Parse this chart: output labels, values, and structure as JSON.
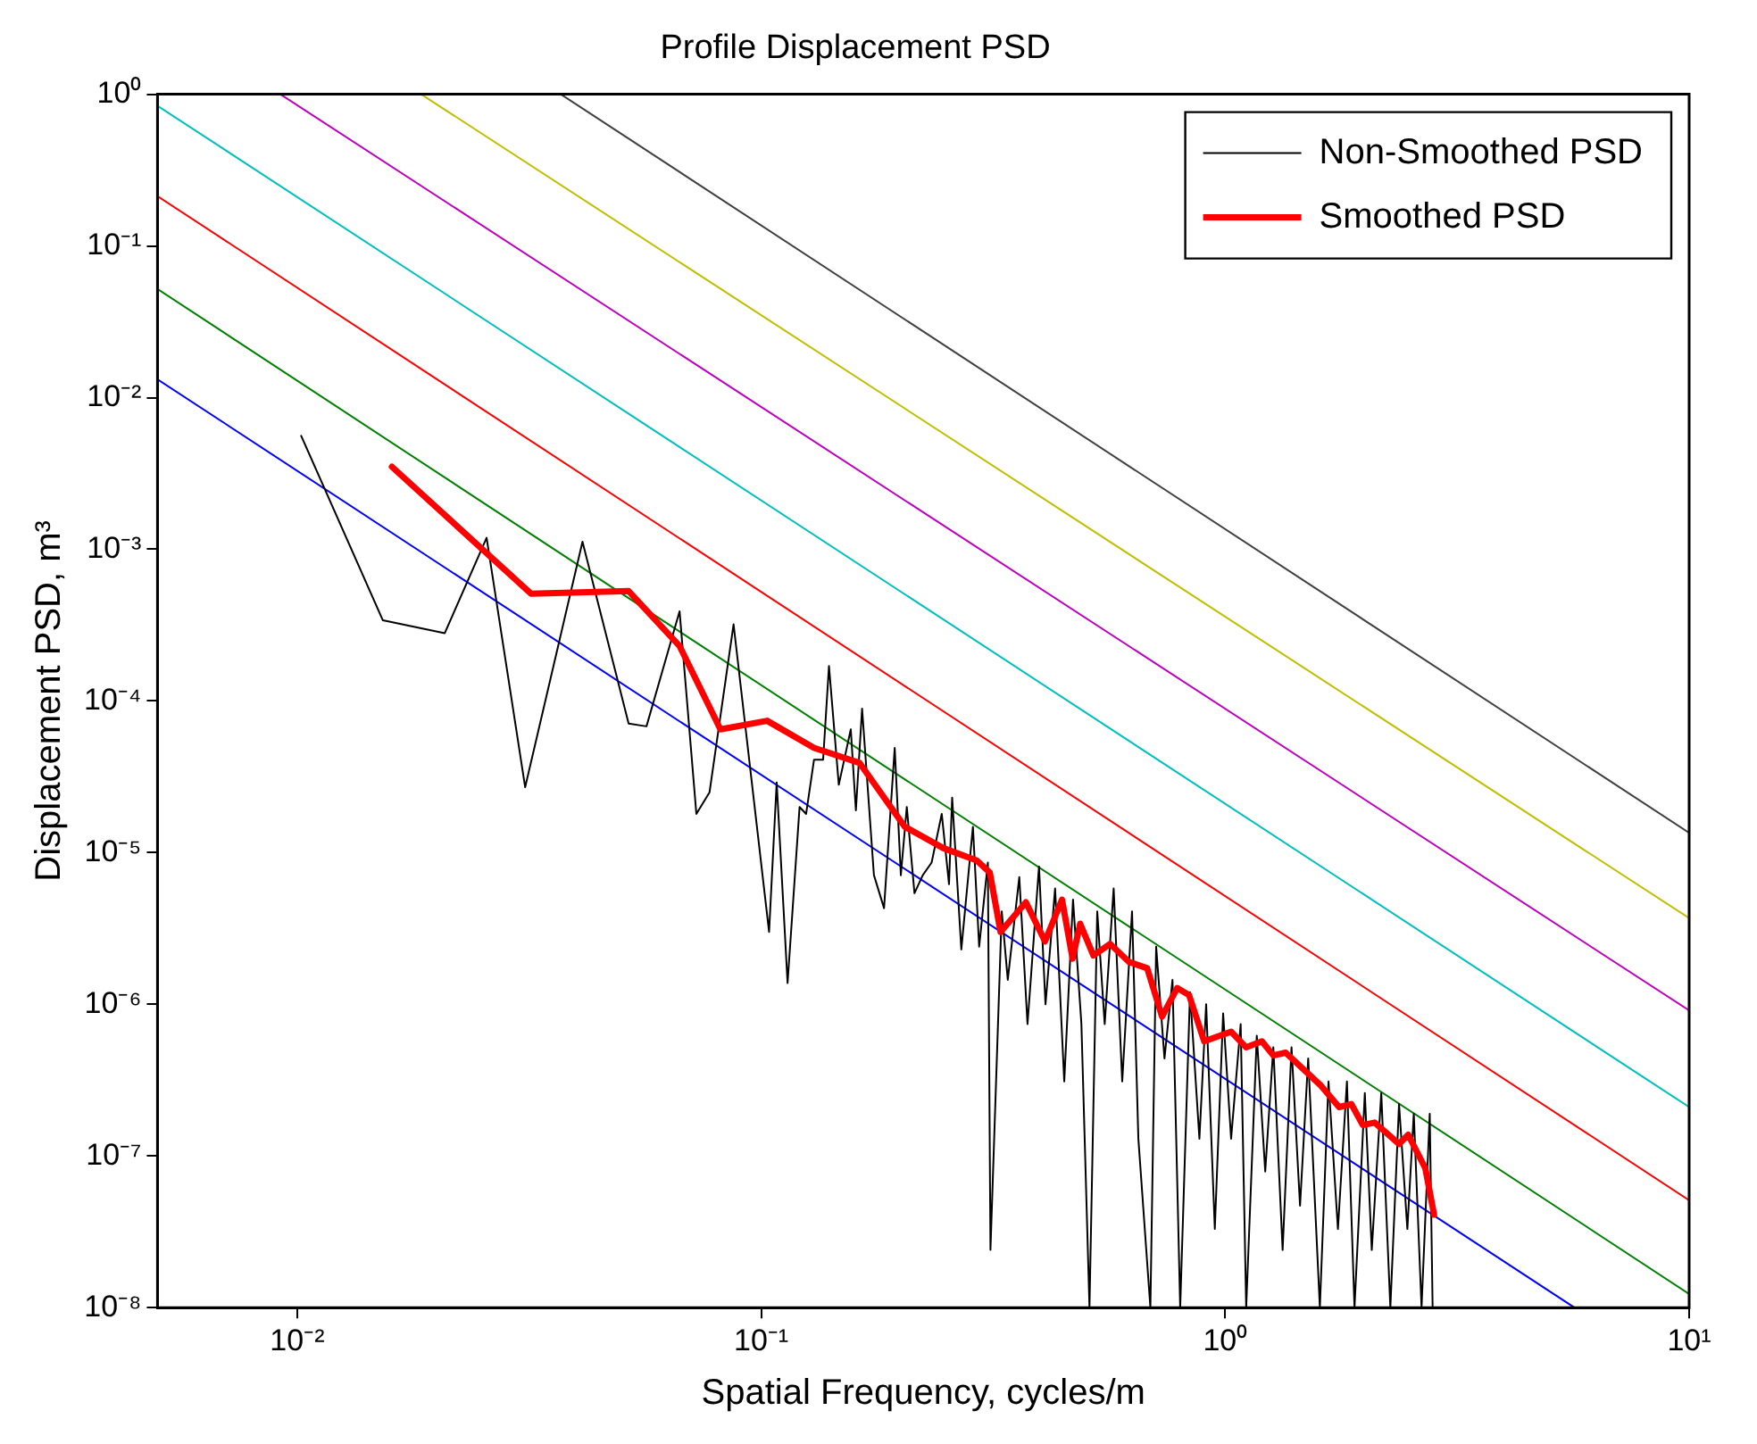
{
  "chart_data": {
    "type": "line",
    "title": "Profile Displacement PSD",
    "xlabel": "Spatial Frequency, cycles/m",
    "ylabel": "Displacement PSD, m³",
    "log": "xy",
    "grid": false,
    "legend": "top right",
    "marker": "none",
    "line_style": "solid",
    "xlim": [
      0.005,
      10
    ],
    "ylim": [
      1e-08,
      1
    ],
    "xticks": [
      {
        "value": 0.01,
        "label": "10⁻²"
      },
      {
        "value": 0.1,
        "label": "10⁻¹"
      },
      {
        "value": 1,
        "label": "10⁰"
      },
      {
        "value": 10,
        "label": "10¹"
      }
    ],
    "yticks": [
      {
        "value": 1e-08,
        "label": "10⁻⁸"
      },
      {
        "value": 1e-07,
        "label": "10⁻⁷"
      },
      {
        "value": 1e-06,
        "label": "10⁻⁶"
      },
      {
        "value": 1e-05,
        "label": "10⁻⁵"
      },
      {
        "value": 0.0001,
        "label": "10⁻⁴"
      },
      {
        "value": 0.001,
        "label": "10⁻³"
      },
      {
        "value": 0.01,
        "label": "10⁻²"
      },
      {
        "value": 0.1,
        "label": "10⁻¹"
      },
      {
        "value": 1,
        "label": "10⁰"
      }
    ],
    "series": [
      {
        "color": "#0000ff",
        "x": [
          0.005,
          5.66
        ],
        "values": [
          0.0132,
          1e-08
        ]
      },
      {
        "color": "#008000",
        "x": [
          0.005,
          10
        ],
        "values": [
          0.052,
          1.23e-08
        ]
      },
      {
        "color": "#ff0000",
        "x": [
          0.005,
          10
        ],
        "values": [
          0.213,
          5.1e-08
        ]
      },
      {
        "color": "#00bfbf",
        "x": [
          0.005,
          10
        ],
        "values": [
          0.84,
          2.1e-07
        ]
      },
      {
        "color": "#bf00bf",
        "x": [
          0.0092,
          10
        ],
        "values": [
          1,
          9.1e-07
        ]
      },
      {
        "color": "#bfbf00",
        "x": [
          0.0185,
          10
        ],
        "values": [
          1,
          3.7e-06
        ]
      },
      {
        "color": "#404040",
        "x": [
          0.037,
          10
        ],
        "values": [
          1,
          1.35e-05
        ]
      },
      {
        "name": "Non-Smoothed PSD",
        "color": "#000000",
        "x": [
          0.0102,
          0.0153,
          0.0208,
          0.0256,
          0.031,
          0.0412,
          0.0518,
          0.0566,
          0.0667,
          0.0725,
          0.0774,
          0.0872,
          0.104,
          0.108,
          0.114,
          0.121,
          0.125,
          0.13,
          0.136,
          0.14,
          0.147,
          0.156,
          0.16,
          0.165,
          0.175,
          0.184,
          0.194,
          0.2,
          0.206,
          0.214,
          0.223,
          0.233,
          0.245,
          0.254,
          0.258,
          0.27,
          0.286,
          0.295,
          0.308,
          0.312,
          0.33,
          0.34,
          0.36,
          0.375,
          0.397,
          0.41,
          0.43,
          0.45,
          0.47,
          0.49,
          0.51,
          0.53,
          0.55,
          0.575,
          0.6,
          0.63,
          0.65,
          0.69,
          0.71,
          0.74,
          0.77,
          0.8,
          0.84,
          0.88,
          0.91,
          0.95,
          0.99,
          1.03,
          1.08,
          1.11,
          1.17,
          1.22,
          1.27,
          1.33,
          1.39,
          1.45,
          1.51,
          1.6,
          1.67,
          1.75,
          1.83,
          1.9,
          2.0,
          2.07,
          2.17,
          2.27,
          2.37,
          2.47,
          2.55,
          2.65,
          2.76,
          2.8
        ],
        "values": [
          0.0056,
          0.00034,
          0.00028,
          0.00119,
          2.7e-05,
          0.00112,
          7.1e-05,
          6.8e-05,
          0.00039,
          1.8e-05,
          2.5e-05,
          0.00032,
          3e-06,
          2.9e-05,
          1.38e-06,
          2e-05,
          1.8e-05,
          4.1e-05,
          4.1e-05,
          0.00017,
          2.8e-05,
          6.5e-05,
          1.9e-05,
          8.9e-05,
          7.1e-06,
          4.3e-06,
          4.9e-05,
          7.1e-06,
          2e-05,
          5.4e-06,
          7.1e-06,
          8.6e-06,
          1.8e-05,
          6.2e-06,
          2.3e-05,
          2.3e-06,
          1.48e-05,
          2.4e-06,
          8.6e-06,
          2.4e-08,
          4.1e-06,
          1.45e-06,
          6.9e-06,
          7.4e-07,
          8.1e-06,
          1e-06,
          5.8e-06,
          3.1e-07,
          4.9e-06,
          7.4e-07,
          1e-08,
          4.1e-06,
          7.4e-07,
          5.8e-06,
          3.1e-07,
          4.1e-06,
          1.3e-07,
          1e-08,
          2.4e-06,
          4.4e-07,
          1.45e-06,
          1e-08,
          1.2e-06,
          1.3e-07,
          1e-06,
          3.3e-08,
          8.7e-07,
          1.3e-07,
          7.4e-07,
          1e-08,
          6.2e-07,
          7.9e-08,
          5.2e-07,
          2.4e-08,
          5.2e-07,
          4.7e-08,
          4.4e-07,
          1e-08,
          3.1e-07,
          3.3e-08,
          3.1e-07,
          1e-08,
          2.6e-07,
          2.4e-08,
          2.6e-07,
          1e-08,
          2.2e-07,
          3.3e-08,
          1.9e-07,
          1e-08,
          1.9e-07,
          1e-08
        ]
      },
      {
        "name": "Smoothed PSD",
        "color": "#ff0000",
        "x": [
          0.016,
          0.0319,
          0.0518,
          0.0667,
          0.0817,
          0.103,
          0.13,
          0.163,
          0.204,
          0.247,
          0.291,
          0.311,
          0.328,
          0.372,
          0.409,
          0.445,
          0.469,
          0.487,
          0.52,
          0.565,
          0.621,
          0.679,
          0.731,
          0.788,
          0.836,
          0.901,
          1.03,
          1.11,
          1.2,
          1.27,
          1.35,
          1.61,
          1.76,
          1.87,
          1.98,
          2.1,
          2.37,
          2.48,
          2.7,
          2.82
        ],
        "values": [
          0.0035,
          0.00051,
          0.00053,
          0.00023,
          6.5e-05,
          7.4e-05,
          4.9e-05,
          3.9e-05,
          1.48e-05,
          1.07e-05,
          8.9e-06,
          7.4e-06,
          3e-06,
          4.7e-06,
          2.6e-06,
          4.9e-06,
          2e-06,
          3.4e-06,
          2.1e-06,
          2.5e-06,
          1.9e-06,
          1.73e-06,
          8.3e-07,
          1.28e-06,
          1.15e-06,
          5.7e-07,
          6.6e-07,
          5.2e-07,
          5.7e-07,
          4.6e-07,
          4.8e-07,
          2.9e-07,
          2.1e-07,
          2.2e-07,
          1.6e-07,
          1.66e-07,
          1.2e-07,
          1.38e-07,
          8.3e-08,
          4.1e-08
        ]
      }
    ]
  }
}
